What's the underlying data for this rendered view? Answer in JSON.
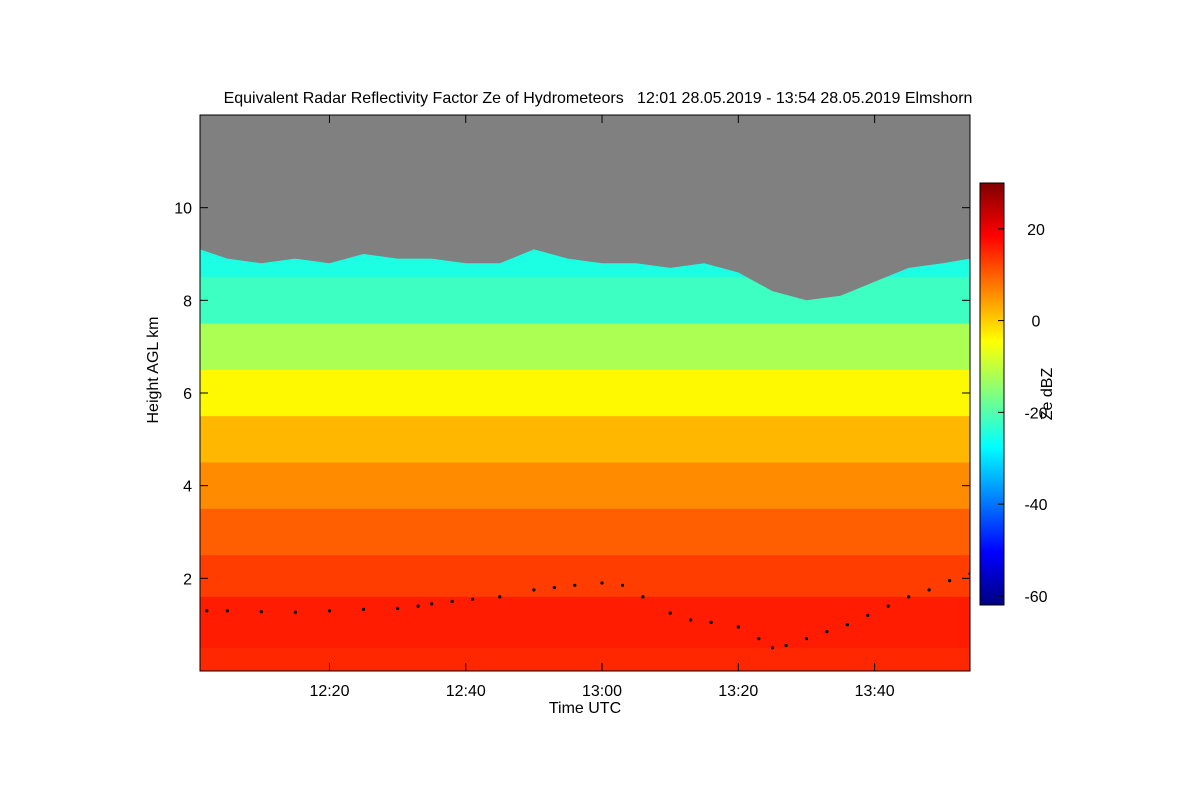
{
  "chart_data": {
    "type": "heatmap",
    "title": "Equivalent Radar Reflectivity Factor Ze of Hydrometeors   12:01 28.05.2019 - 13:54 28.05.2019 Elmshorn",
    "xlabel": "Time UTC",
    "ylabel": "Height AGL km",
    "colorbar_label": "Ze dBZ",
    "x_range_minutes": [
      721,
      834
    ],
    "x_ticks": [
      {
        "minute": 740,
        "label": "12:20"
      },
      {
        "minute": 760,
        "label": "12:40"
      },
      {
        "minute": 780,
        "label": "13:00"
      },
      {
        "minute": 800,
        "label": "13:20"
      },
      {
        "minute": 820,
        "label": "13:40"
      }
    ],
    "ylim": [
      0,
      12
    ],
    "y_ticks": [
      2,
      4,
      6,
      8,
      10
    ],
    "color_range": [
      -62,
      30
    ],
    "color_ticks": [
      20,
      0,
      -20,
      -40,
      -60
    ],
    "colormap": [
      "#000080",
      "#0000ff",
      "#0080ff",
      "#00ffff",
      "#80ff80",
      "#ffff00",
      "#ff8000",
      "#ff0000",
      "#800000"
    ],
    "no_signal_color": "#808080",
    "echo_top_km": [
      [
        721,
        9.1
      ],
      [
        725,
        8.9
      ],
      [
        730,
        8.8
      ],
      [
        735,
        8.9
      ],
      [
        740,
        8.8
      ],
      [
        745,
        9.0
      ],
      [
        750,
        8.9
      ],
      [
        755,
        8.9
      ],
      [
        760,
        8.8
      ],
      [
        765,
        8.8
      ],
      [
        770,
        9.1
      ],
      [
        775,
        8.9
      ],
      [
        780,
        8.8
      ],
      [
        785,
        8.8
      ],
      [
        790,
        8.7
      ],
      [
        795,
        8.8
      ],
      [
        800,
        8.6
      ],
      [
        805,
        8.2
      ],
      [
        810,
        8.0
      ],
      [
        815,
        8.1
      ],
      [
        820,
        8.4
      ],
      [
        825,
        8.7
      ],
      [
        830,
        8.8
      ],
      [
        834,
        8.9
      ]
    ],
    "profile_layers": [
      {
        "top_km": 12.0,
        "dbz": -25
      },
      {
        "top_km": 8.5,
        "dbz": -22
      },
      {
        "top_km": 7.5,
        "dbz": -12
      },
      {
        "top_km": 6.5,
        "dbz": -4
      },
      {
        "top_km": 5.5,
        "dbz": 2
      },
      {
        "top_km": 4.5,
        "dbz": 6
      },
      {
        "top_km": 3.5,
        "dbz": 10
      },
      {
        "top_km": 2.5,
        "dbz": 13
      },
      {
        "top_km": 1.6,
        "dbz": 16
      },
      {
        "top_km": 0.5,
        "dbz": 15
      }
    ],
    "line_series": {
      "name": "",
      "color": "#000000",
      "points": [
        [
          722,
          1.3
        ],
        [
          725,
          1.3
        ],
        [
          730,
          1.28
        ],
        [
          735,
          1.27
        ],
        [
          740,
          1.3
        ],
        [
          745,
          1.33
        ],
        [
          750,
          1.35
        ],
        [
          753,
          1.4
        ],
        [
          755,
          1.45
        ],
        [
          758,
          1.5
        ],
        [
          761,
          1.55
        ],
        [
          765,
          1.6
        ],
        [
          770,
          1.75
        ],
        [
          773,
          1.8
        ],
        [
          776,
          1.85
        ],
        [
          780,
          1.9
        ],
        [
          783,
          1.85
        ],
        [
          786,
          1.6
        ],
        [
          790,
          1.25
        ],
        [
          793,
          1.1
        ],
        [
          796,
          1.05
        ],
        [
          800,
          0.95
        ],
        [
          803,
          0.7
        ],
        [
          805,
          0.5
        ],
        [
          807,
          0.55
        ],
        [
          810,
          0.7
        ],
        [
          813,
          0.85
        ],
        [
          816,
          1.0
        ],
        [
          819,
          1.2
        ],
        [
          822,
          1.4
        ],
        [
          825,
          1.6
        ],
        [
          828,
          1.75
        ],
        [
          831,
          1.95
        ],
        [
          834,
          2.1
        ]
      ]
    }
  }
}
